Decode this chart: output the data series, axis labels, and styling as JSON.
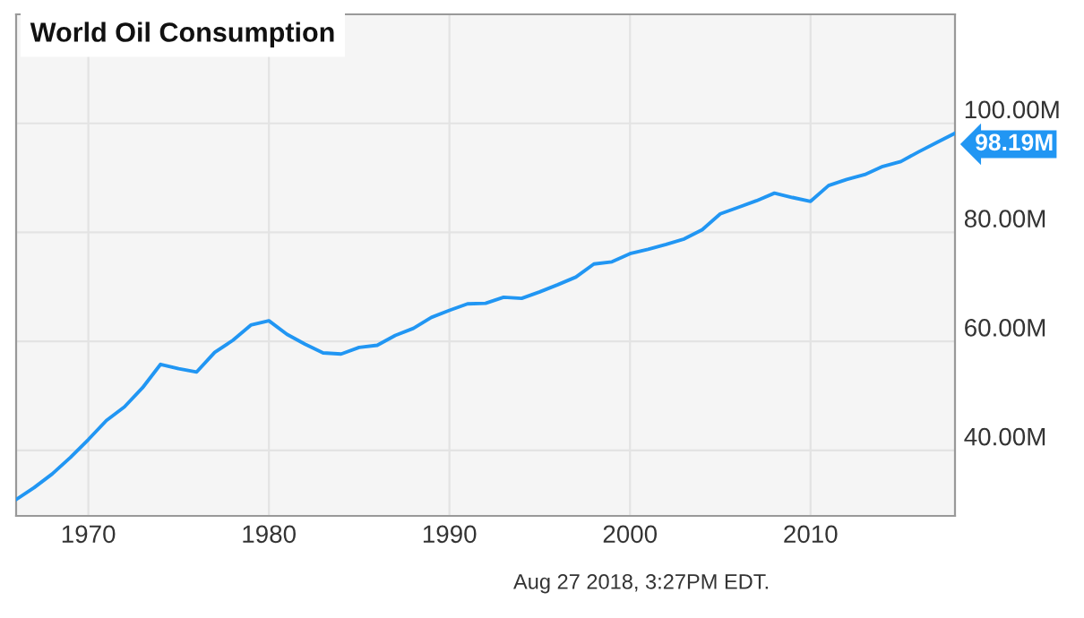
{
  "chart_data": {
    "type": "line",
    "title": "World Oil Consumption",
    "x": [
      1966,
      1967,
      1968,
      1969,
      1970,
      1971,
      1972,
      1973,
      1974,
      1975,
      1976,
      1977,
      1978,
      1979,
      1980,
      1981,
      1982,
      1983,
      1984,
      1985,
      1986,
      1987,
      1988,
      1989,
      1990,
      1991,
      1992,
      1993,
      1994,
      1995,
      1996,
      1997,
      1998,
      1999,
      2000,
      2001,
      2002,
      2003,
      2004,
      2005,
      2006,
      2007,
      2008,
      2009,
      2010,
      2011,
      2012,
      2013,
      2014,
      2015,
      2016,
      2017,
      2018
    ],
    "series": [
      {
        "color": "#2196f3",
        "values": [
          31.0,
          33.2,
          35.7,
          38.7,
          42.0,
          45.5,
          48.0,
          51.5,
          55.8,
          55.0,
          54.4,
          58.0,
          60.2,
          63.0,
          63.8,
          61.3,
          59.5,
          57.9,
          57.7,
          58.9,
          59.3,
          61.1,
          62.4,
          64.4,
          65.7,
          66.9,
          67.0,
          68.1,
          67.9,
          69.1,
          70.4,
          71.8,
          74.2,
          74.6,
          76.1,
          76.9,
          77.8,
          78.8,
          80.5,
          83.4,
          84.6,
          85.8,
          87.2,
          86.4,
          85.7,
          88.6,
          89.7,
          90.6,
          92.1,
          93.0,
          94.8,
          96.5,
          98.19
        ]
      }
    ],
    "xlim": [
      1966,
      2018
    ],
    "xticks": [
      1970,
      1980,
      1990,
      2000,
      2010
    ],
    "ylim": [
      28,
      120
    ],
    "yticks": [
      {
        "value": 40,
        "label": "40.00M"
      },
      {
        "value": 60,
        "label": "60.00M"
      },
      {
        "value": 80,
        "label": "80.00M"
      },
      {
        "value": 100,
        "label": "100.00M"
      }
    ],
    "grid": true,
    "marker": "none",
    "line_style": "solid",
    "annotations": [
      {
        "text": "98.19M",
        "x": 2018,
        "y": 98.19
      },
      "Aug 27 2018, 3:27PM EDT."
    ]
  }
}
